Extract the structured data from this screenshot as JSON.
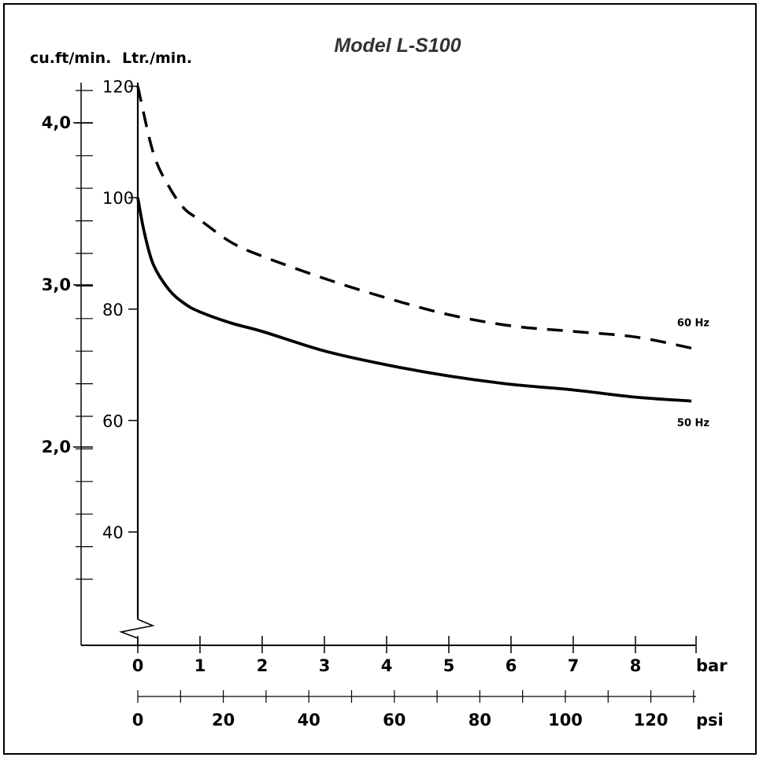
{
  "chart_data": {
    "type": "line",
    "title": "Model L-S100",
    "y_axis_left": {
      "label": "cu.ft/min.",
      "ticks": [
        "4,0",
        "3,0",
        "2,0"
      ],
      "tick_values": [
        4.0,
        3.0,
        2.0
      ]
    },
    "y_axis_right": {
      "label": "Ltr./min.",
      "ticks": [
        "120",
        "100",
        "80",
        "60",
        "40"
      ],
      "tick_values": [
        120,
        100,
        80,
        60,
        40
      ],
      "ylim": [
        30,
        120
      ]
    },
    "x_axis_bar": {
      "label": "bar",
      "ticks": [
        "0",
        "1",
        "2",
        "3",
        "4",
        "5",
        "6",
        "7",
        "8"
      ],
      "tick_values": [
        0,
        1,
        2,
        3,
        4,
        5,
        6,
        7,
        8
      ],
      "xlim": [
        0,
        8.9
      ]
    },
    "x_axis_psi": {
      "label": "psi",
      "ticks": [
        "0",
        "20",
        "40",
        "60",
        "80",
        "100",
        "120"
      ],
      "tick_values": [
        0,
        20,
        40,
        60,
        80,
        100,
        120
      ]
    },
    "series": [
      {
        "name": "60 Hz",
        "style": "dashed",
        "x": [
          0,
          0.25,
          0.5,
          0.75,
          1.0,
          1.5,
          2.0,
          3.0,
          4.0,
          5.0,
          6.0,
          7.0,
          8.0,
          8.9
        ],
        "y": [
          120,
          108,
          102,
          98,
          96,
          92,
          89.5,
          85.5,
          82,
          79,
          77,
          76,
          75,
          73
        ]
      },
      {
        "name": "50 Hz",
        "style": "solid",
        "x": [
          0,
          0.1,
          0.25,
          0.5,
          0.75,
          1.0,
          1.5,
          2.0,
          3.0,
          4.0,
          5.0,
          6.0,
          7.0,
          8.0,
          8.9
        ],
        "y": [
          100,
          94,
          88,
          83.5,
          81,
          79.5,
          77.5,
          76,
          72.5,
          70,
          68,
          66.5,
          65.5,
          64.2,
          63.5
        ]
      }
    ],
    "grid": false
  }
}
